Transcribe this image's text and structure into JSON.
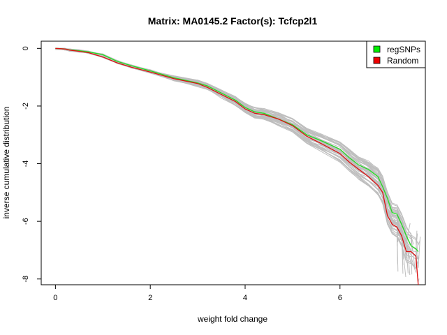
{
  "chart_data": {
    "type": "line",
    "title": "Matrix: MA0145.2 Factor(s): Tcfcp2l1",
    "xlabel": "weight fold change",
    "ylabel": "inverse cumulative distribution",
    "xlim": [
      -0.3,
      7.8
    ],
    "ylim": [
      -8.2,
      0.25
    ],
    "xticks": [
      0,
      2,
      4,
      6
    ],
    "yticks": [
      0,
      -2,
      -4,
      -6,
      -8
    ],
    "xtick_labels": [
      "0",
      "2",
      "4",
      "6"
    ],
    "ytick_labels": [
      "0",
      "-2",
      "-4",
      "-6",
      "-8"
    ],
    "legend": {
      "position": "top-right",
      "entries": [
        {
          "label": "regSNPs",
          "color": "#00ee00"
        },
        {
          "label": "Random",
          "color": "#ee0000"
        }
      ]
    },
    "background_color": "#bebebe",
    "series": [
      {
        "name": "regSNPs",
        "color": "#22dd22",
        "x": [
          0,
          0.2,
          0.3,
          0.5,
          0.7,
          1.0,
          1.3,
          1.6,
          2.0,
          2.5,
          3.0,
          3.2,
          3.5,
          3.8,
          4.0,
          4.2,
          4.4,
          4.7,
          5.0,
          5.3,
          5.6,
          6.0,
          6.2,
          6.4,
          6.6,
          6.8,
          6.9,
          7.0,
          7.1,
          7.2,
          7.3,
          7.4,
          7.5,
          7.6,
          7.65
        ],
        "y": [
          0,
          -0.02,
          -0.05,
          -0.08,
          -0.12,
          -0.22,
          -0.45,
          -0.6,
          -0.78,
          -1.02,
          -1.2,
          -1.3,
          -1.55,
          -1.8,
          -2.05,
          -2.2,
          -2.25,
          -2.45,
          -2.65,
          -3.0,
          -3.2,
          -3.5,
          -3.8,
          -4.05,
          -4.2,
          -4.45,
          -4.8,
          -5.2,
          -5.7,
          -5.75,
          -6.1,
          -6.5,
          -6.85,
          -6.95,
          -7.05
        ]
      },
      {
        "name": "Random",
        "color": "#dd1111",
        "x": [
          0,
          0.2,
          0.3,
          0.5,
          0.7,
          1.0,
          1.3,
          1.6,
          2.0,
          2.5,
          3.0,
          3.2,
          3.5,
          3.8,
          4.0,
          4.2,
          4.4,
          4.7,
          5.0,
          5.3,
          5.6,
          6.0,
          6.2,
          6.4,
          6.6,
          6.8,
          6.9,
          7.0,
          7.1,
          7.2,
          7.3,
          7.4,
          7.5,
          7.6,
          7.65
        ],
        "y": [
          0,
          -0.02,
          -0.06,
          -0.1,
          -0.15,
          -0.3,
          -0.5,
          -0.65,
          -0.82,
          -1.05,
          -1.22,
          -1.35,
          -1.6,
          -1.85,
          -2.1,
          -2.25,
          -2.3,
          -2.45,
          -2.68,
          -3.05,
          -3.3,
          -3.65,
          -3.95,
          -4.2,
          -4.45,
          -4.75,
          -5.0,
          -5.8,
          -6.1,
          -6.2,
          -6.5,
          -7.05,
          -7.05,
          -7.2,
          -8.3
        ]
      }
    ]
  }
}
